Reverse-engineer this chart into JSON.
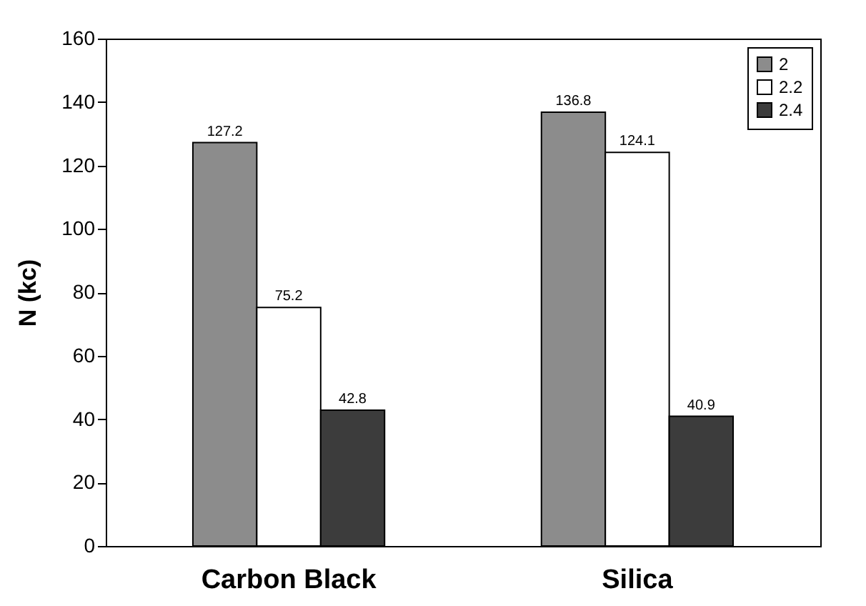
{
  "chart_data": {
    "type": "bar",
    "ylabel": "N (kc)",
    "categories": [
      "Carbon Black",
      "Silica"
    ],
    "series": [
      {
        "name": "2",
        "color": "#8c8c8c",
        "values": [
          127.2,
          136.8
        ]
      },
      {
        "name": "2.2",
        "color": "#ffffff",
        "values": [
          75.2,
          124.1
        ]
      },
      {
        "name": "2.4",
        "color": "#3c3c3c",
        "values": [
          42.8,
          40.9
        ]
      }
    ],
    "ylim": [
      0,
      160
    ],
    "yticks": [
      0,
      20,
      40,
      60,
      80,
      100,
      120,
      140,
      160
    ],
    "data_labels": true,
    "legend": "top right",
    "grid": false
  }
}
